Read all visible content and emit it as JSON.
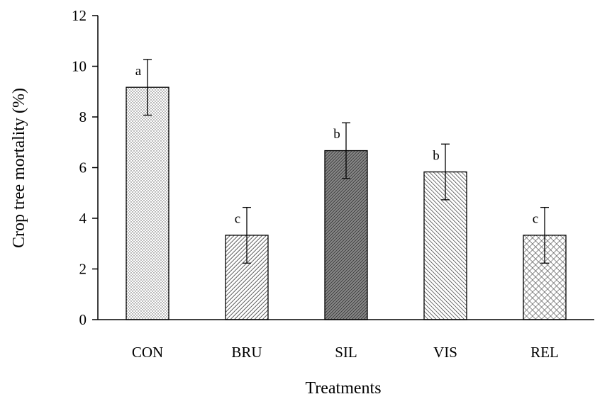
{
  "chart_data": {
    "type": "bar",
    "title": "",
    "xlabel": "Treatments",
    "ylabel": "Crop tree mortality (%)",
    "ylim": [
      0,
      12
    ],
    "yticks": [
      0,
      2,
      4,
      6,
      8,
      10,
      12
    ],
    "categories": [
      "CON",
      "BRU",
      "SIL",
      "VIS",
      "REL"
    ],
    "values": [
      9.17,
      3.33,
      6.67,
      5.83,
      3.33
    ],
    "errors": [
      1.1,
      1.1,
      1.1,
      1.1,
      1.1
    ],
    "significance": [
      "a",
      "c",
      "b",
      "b",
      "c"
    ],
    "patterns": [
      "dots",
      "diag-fine",
      "dense-dark",
      "diag-back",
      "crosshatch"
    ],
    "grid": false,
    "legend": "none"
  }
}
